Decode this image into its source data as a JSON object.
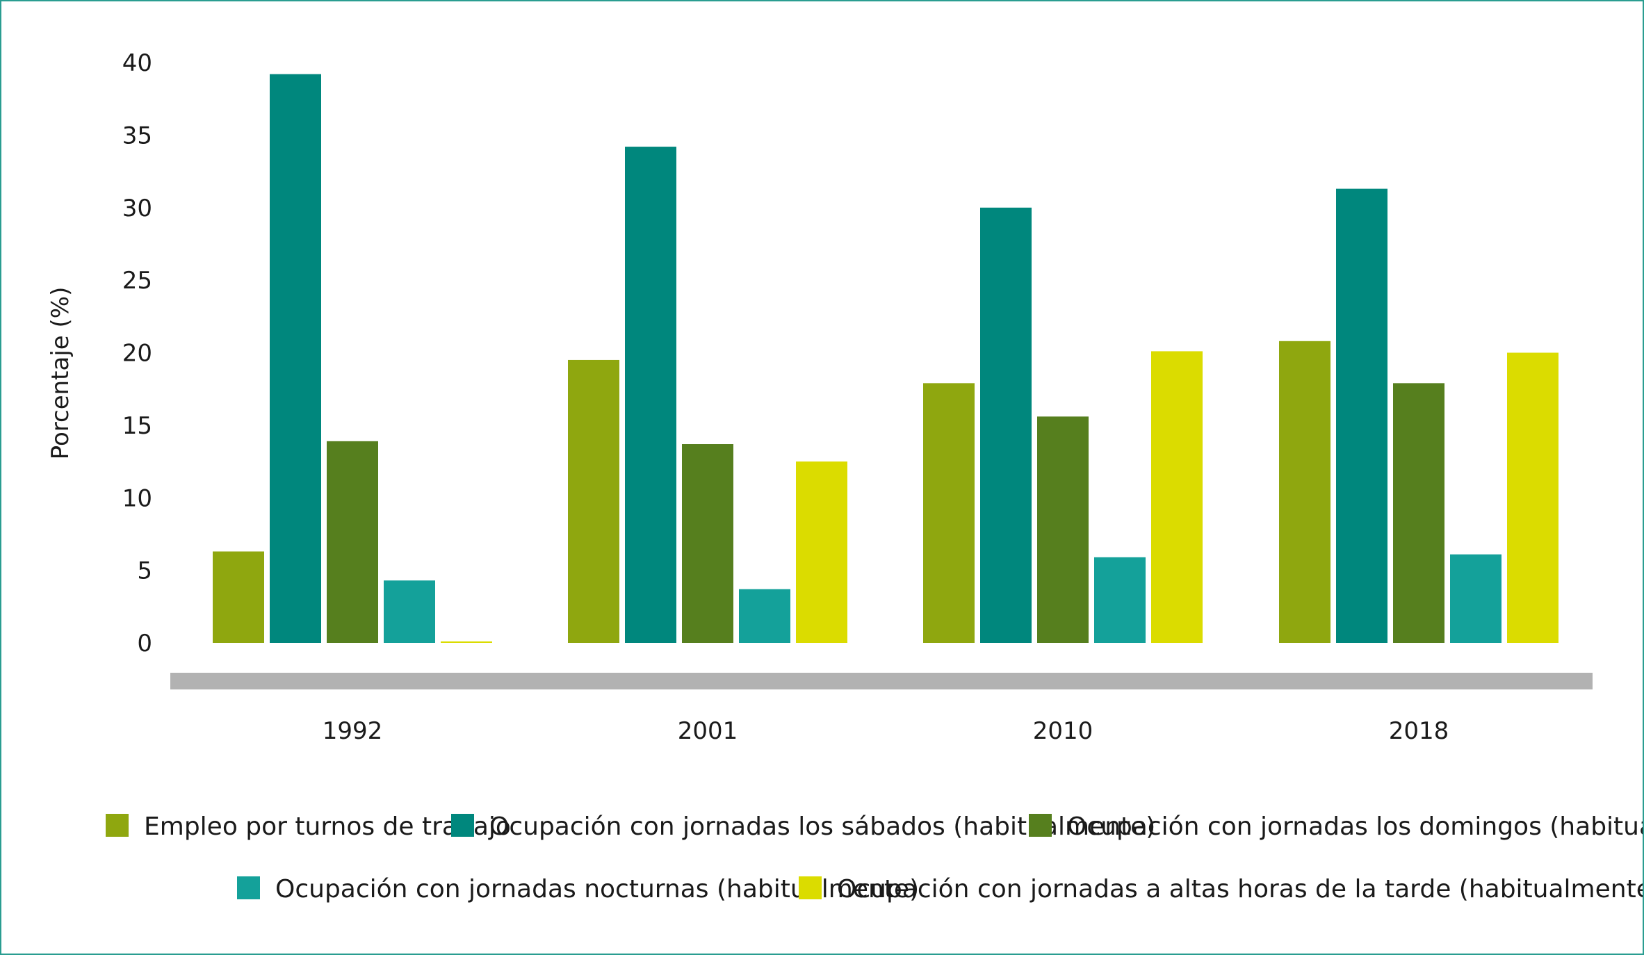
{
  "chart_data": {
    "type": "bar",
    "title": "",
    "xlabel": "",
    "ylabel": "Porcentaje (%)",
    "ylim": [
      0,
      40
    ],
    "yticks": [
      "0",
      "5",
      "10",
      "15",
      "20",
      "25",
      "30",
      "35",
      "40"
    ],
    "ytick_values": [
      0,
      5,
      10,
      15,
      20,
      25,
      30,
      35,
      40
    ],
    "categories": [
      "1992",
      "2001",
      "2010",
      "2018"
    ],
    "series": [
      {
        "name": "Empleo por turnos de trabajo",
        "color": "#8fa70f",
        "values": [
          6.3,
          19.5,
          17.9,
          20.8
        ]
      },
      {
        "name": "Ocupación con jornadas los sábados (habitualmente)",
        "color": "#00877d",
        "values": [
          39.2,
          34.2,
          30.0,
          31.3
        ]
      },
      {
        "name": "Ocupación con jornadas los domingos (habitualmente)",
        "color": "#567f1e",
        "values": [
          13.9,
          13.7,
          15.6,
          17.9
        ]
      },
      {
        "name": "Ocupación con jornadas nocturnas (habitualmente)",
        "color": "#14a19a",
        "values": [
          4.3,
          3.7,
          5.9,
          6.1
        ]
      },
      {
        "name": "Ocupación con jornadas a altas horas de la tarde (habitualmente)",
        "color": "#dbdc00",
        "values": [
          0.1,
          12.5,
          20.1,
          20.0
        ]
      }
    ],
    "grid": false,
    "legend_position": "bottom",
    "axis_band_color": "#b2b2b2"
  }
}
